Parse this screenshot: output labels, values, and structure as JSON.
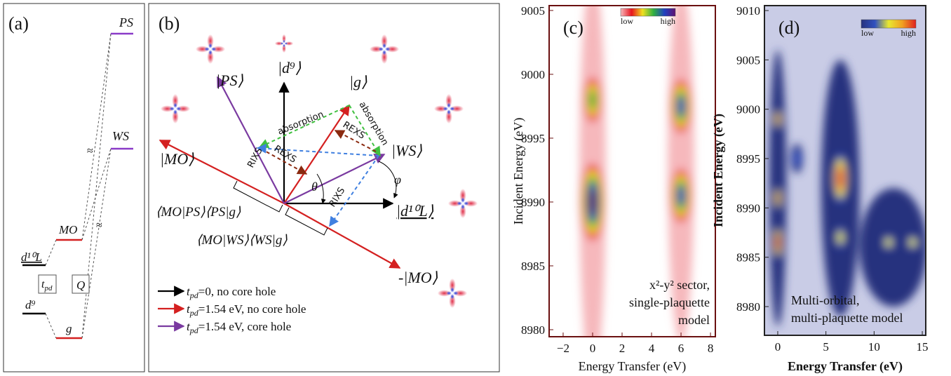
{
  "panel_a": {
    "label": "(a)",
    "levels": {
      "ps": "PS",
      "ws": "WS",
      "mo": "MO",
      "d10l": "d¹⁰L",
      "d9": "d⁹",
      "g": "g"
    },
    "boxes": {
      "tpd": {
        "symbol": "t",
        "subscript": "pd"
      },
      "q": "Q"
    }
  },
  "panel_b": {
    "label": "(b)",
    "states": {
      "ps": "|PS⟩",
      "d9": "|d⁹⟩",
      "g": "|g⟩",
      "mo": "|MO⟩",
      "ws": "|WS⟩",
      "d10l": "|d¹⁰L⟩",
      "minus_mo": "-|MO⟩"
    },
    "processes": {
      "absorption": "absorption",
      "rexs": "REXS",
      "rixs": "RIXS"
    },
    "angles": {
      "theta": "θ",
      "phi": "φ"
    },
    "amplitudes": [
      "⟨MO|PS⟩⟨PS|g⟩",
      "⟨MO|WS⟩⟨WS|g⟩"
    ],
    "legend": [
      {
        "symbol": "t",
        "subscript": "pd",
        "text": "=0, no core hole"
      },
      {
        "symbol": "t",
        "subscript": "pd",
        "text": "=1.54 eV, no core hole"
      },
      {
        "symbol": "t",
        "subscript": "pd",
        "text": "=1.54 eV, core hole"
      }
    ]
  },
  "chart_data": [
    {
      "type": "heatmap",
      "label": "(c)",
      "xlabel": "Energy Transfer (eV)",
      "ylabel": "Incident Energy (eV)",
      "xlim": [
        -2.95,
        8.33
      ],
      "ylim": [
        8979.45,
        9005.38
      ],
      "xticks": [
        {
          "value": -2,
          "label": "−2"
        },
        0,
        2,
        4,
        6,
        8
      ],
      "yticks": [
        8980,
        8985,
        8990,
        8995,
        9000,
        9005
      ],
      "colorbar": {
        "low": "low",
        "high": "high"
      },
      "colors": [
        "#ffffff",
        "#f6b8bc",
        "#e8141e",
        "#f0e020",
        "#30b040",
        "#2040c0",
        "#601070"
      ],
      "background": "#ffffff",
      "frame_color": "#6a1010",
      "annotation": [
        "x²-y² sector,",
        "single-plaquette",
        "model"
      ],
      "peaks": [
        {
          "x": 0,
          "y": 8992,
          "sx": 0.9,
          "sy": 16,
          "level": 1
        },
        {
          "x": 6,
          "y": 8993,
          "sx": 0.9,
          "sy": 14,
          "level": 1
        },
        {
          "x": 0,
          "y": 8998,
          "sx": 0.7,
          "sy": 2.2,
          "level": 4
        },
        {
          "x": 0,
          "y": 8990,
          "sx": 0.9,
          "sy": 3.5,
          "level": 6
        },
        {
          "x": 6,
          "y": 8997.5,
          "sx": 0.8,
          "sy": 2.5,
          "level": 5
        },
        {
          "x": 6,
          "y": 8990.5,
          "sx": 0.8,
          "sy": 2.5,
          "level": 5
        }
      ]
    },
    {
      "type": "heatmap",
      "label": "(d)",
      "xlabel": "Energy Transfer (eV)",
      "ylabel": "Incident Energy (eV)",
      "xlim": [
        -1.38,
        15.36
      ],
      "ylim": [
        8977.09,
        9010.5
      ],
      "xticks": [
        0,
        5,
        10,
        15
      ],
      "yticks": [
        8980,
        8985,
        8990,
        8995,
        9000,
        9005,
        9010
      ],
      "colorbar": {
        "low": "low",
        "high": "high"
      },
      "colors": [
        "#ffffff",
        "#27317e",
        "#3050c0",
        "#e8e830",
        "#f0a020",
        "#e02020"
      ],
      "background": "#c9cce6",
      "frame_color": "#222222",
      "annotation": [
        "Multi-orbital,",
        "multi-plaquette model"
      ],
      "peaks": [
        {
          "x": 0,
          "y": 8992,
          "sx": 0.9,
          "sy": 14,
          "level": 1
        },
        {
          "x": 6.5,
          "y": 8992,
          "sx": 2,
          "sy": 13,
          "level": 1
        },
        {
          "x": 12,
          "y": 8986,
          "sx": 3.5,
          "sy": 6,
          "level": 1
        },
        {
          "x": 2,
          "y": 8995,
          "sx": 0.6,
          "sy": 1.5,
          "level": 2
        },
        {
          "x": 0,
          "y": 8999,
          "sx": 0.4,
          "sy": 1.3,
          "level": 4
        },
        {
          "x": 0,
          "y": 8991,
          "sx": 0.4,
          "sy": 1.5,
          "level": 4
        },
        {
          "x": 0,
          "y": 8986.5,
          "sx": 0.45,
          "sy": 2,
          "level": 5
        },
        {
          "x": 6.5,
          "y": 8993,
          "sx": 0.9,
          "sy": 3,
          "level": 5
        },
        {
          "x": 6.5,
          "y": 8987,
          "sx": 0.7,
          "sy": 1.5,
          "level": 3
        },
        {
          "x": 11.5,
          "y": 8986.5,
          "sx": 0.8,
          "sy": 1,
          "level": 3
        },
        {
          "x": 14,
          "y": 8986.5,
          "sx": 0.8,
          "sy": 1,
          "level": 3
        }
      ]
    }
  ]
}
